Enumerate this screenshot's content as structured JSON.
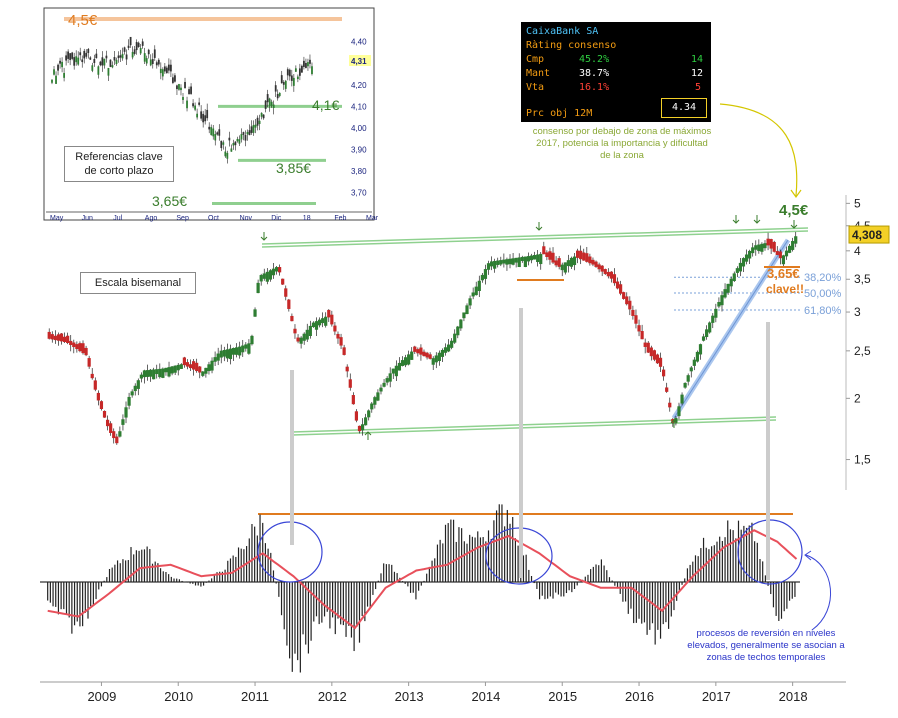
{
  "main_chart": {
    "annotation_escala": "Escala bisemanal",
    "target_label": "4,5€",
    "support_label": "3,65€",
    "support_note": "clave!!",
    "last_price": "4,308",
    "y_ticks": [
      "5",
      "4,5",
      "4",
      "3,5",
      "3",
      "2,5",
      "2",
      "1,5"
    ],
    "fib_levels": [
      "38,20%",
      "50,00%",
      "61,80%"
    ],
    "x_ticks": [
      "2009",
      "2010",
      "2011",
      "2012",
      "2013",
      "2014",
      "2015",
      "2016",
      "2017",
      "2018"
    ]
  },
  "inset": {
    "caption_line1": "Referencias clave",
    "caption_line2": "de corto plazo",
    "levels": [
      "4,5€",
      "4,1€",
      "3,85€",
      "3,65€"
    ],
    "y_ticks": [
      "4,40",
      "4,31",
      "4,20",
      "4,10",
      "4,00",
      "3,90",
      "3,80",
      "3,70"
    ],
    "x_ticks": [
      "May",
      "Jun",
      "Jul",
      "Ago",
      "Sep",
      "Oct",
      "Nov",
      "Dic",
      "18",
      "Feb",
      "Mar"
    ]
  },
  "rating": {
    "company": "CaixaBank SA",
    "title": "Ràting consenso",
    "rows": [
      {
        "label": "Cmp",
        "pct": "45.2%",
        "count": "14"
      },
      {
        "label": "Mant",
        "pct": "38.7%",
        "count": "12"
      },
      {
        "label": "Vta",
        "pct": "16.1%",
        "count": "5"
      }
    ],
    "target_label": "Prc obj 12M",
    "target_value": "4.34",
    "note": "consenso por debajo de zona de máximos 2017, potencia la importancia y dificultad de la zona"
  },
  "oscillator_note": "procesos de reversión en niveles elevados, generalmente se asocian a zonas de techos temporales",
  "colors": {
    "up": "#2e7d32",
    "down": "#c62828",
    "trend": "#8fd18f",
    "orange": "#e07b1f",
    "signal": "#e8505b",
    "circle": "#3a46d6",
    "fib": "#7aa0d8",
    "gold_box": "#f3d027"
  },
  "chart_data": [
    {
      "type": "line",
      "title": "",
      "ylabel": "",
      "y_scale": "log",
      "ylim": [
        1.3,
        5.2
      ],
      "x": [
        2008.3,
        2008.55,
        2008.8,
        2008.95,
        2009.1,
        2009.2,
        2009.35,
        2009.55,
        2009.8,
        2010.05,
        2010.3,
        2010.55,
        2010.8,
        2010.95,
        2011.05,
        2011.3,
        2011.55,
        2011.75,
        2011.95,
        2012.15,
        2012.35,
        2012.55,
        2012.8,
        2013.05,
        2013.3,
        2013.55,
        2013.8,
        2014.05,
        2014.3,
        2014.55,
        2014.75,
        2014.95,
        2015.15,
        2015.4,
        2015.65,
        2015.9,
        2016.1,
        2016.3,
        2016.45,
        2016.6,
        2016.85,
        2017.1,
        2017.35,
        2017.5,
        2017.65,
        2017.85,
        2018.05
      ],
      "series": [
        {
          "values": [
            2.65,
            2.6,
            2.45,
            2.0,
            1.72,
            1.62,
            2.0,
            2.28,
            2.3,
            2.35,
            2.25,
            2.5,
            2.55,
            2.6,
            3.55,
            3.72,
            2.6,
            2.85,
            2.95,
            2.5,
            1.7,
            2.0,
            2.3,
            2.5,
            2.4,
            2.6,
            3.2,
            3.8,
            3.85,
            3.9,
            3.95,
            3.7,
            3.9,
            3.75,
            3.5,
            3.0,
            2.5,
            2.3,
            1.75,
            2.15,
            2.7,
            3.3,
            3.85,
            4.1,
            4.15,
            3.85,
            4.308
          ]
        }
      ],
      "annotations": [
        "4,5€",
        "3,65€",
        "clave!!",
        "4,308",
        "38,20%",
        "50,00%",
        "61,80%"
      ]
    },
    {
      "type": "line",
      "title": "",
      "x": [
        "May",
        "Jun",
        "Jul",
        "Ago",
        "Sep",
        "Oct",
        "Nov",
        "Dic",
        "18",
        "Feb"
      ],
      "ylim": [
        3.62,
        4.5
      ],
      "series": [
        {
          "values": [
            4.25,
            4.33,
            4.3,
            4.38,
            4.25,
            4.1,
            3.9,
            4.0,
            4.2,
            4.31
          ]
        }
      ],
      "annotations": [
        "4,5€",
        "4,1€",
        "3,85€",
        "3,65€"
      ]
    },
    {
      "type": "bar",
      "title": "",
      "x": [
        2008.3,
        2008.7,
        2009.1,
        2009.5,
        2009.9,
        2010.3,
        2010.7,
        2011.1,
        2011.5,
        2011.9,
        2012.3,
        2012.7,
        2013.1,
        2013.5,
        2013.9,
        2014.3,
        2014.7,
        2015.1,
        2015.5,
        2015.9,
        2016.3,
        2016.7,
        2017.1,
        2017.5,
        2017.8,
        2018.05
      ],
      "series": [
        {
          "name": "",
          "values": [
            -20,
            -45,
            10,
            35,
            5,
            -5,
            20,
            60,
            -80,
            -30,
            -60,
            20,
            -15,
            50,
            40,
            70,
            -15,
            -10,
            20,
            -30,
            -55,
            25,
            50,
            45,
            -35,
            -15
          ]
        },
        {
          "name": "",
          "values": [
            -25,
            -30,
            -10,
            12,
            15,
            5,
            8,
            25,
            5,
            -20,
            -40,
            -5,
            10,
            15,
            30,
            40,
            25,
            5,
            -5,
            -5,
            -25,
            5,
            30,
            45,
            35,
            20
          ]
        }
      ]
    }
  ]
}
